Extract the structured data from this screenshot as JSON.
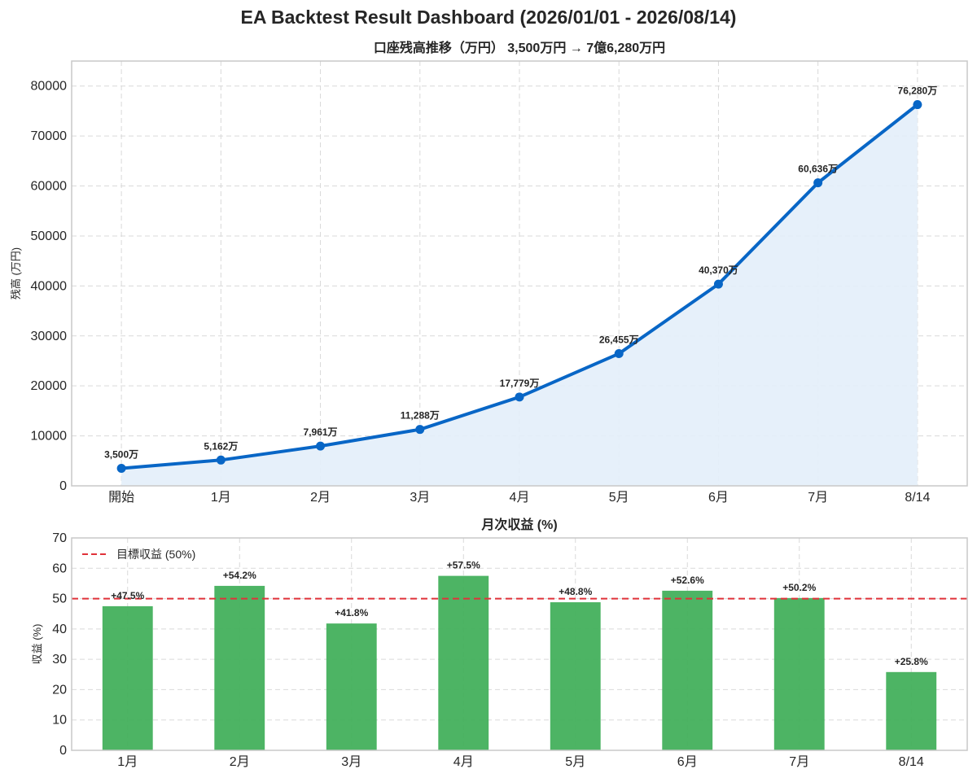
{
  "page": {
    "title": "EA Backtest Result Dashboard (2026/01/01 - 2026/08/14)"
  },
  "colors": {
    "line": "#0866c6",
    "area_fill": "#e3eef9",
    "bar": "#43b05c",
    "target_line": "#e0323a",
    "grid": "#d9d9d9",
    "frame": "#c8c8c8"
  },
  "chart_data": [
    {
      "type": "line",
      "title": "口座残高推移（万円） 3,500万円 → 7億6,280万円",
      "xlabel": "",
      "ylabel": "残高 (万円)",
      "categories": [
        "開始",
        "1月",
        "2月",
        "3月",
        "4月",
        "5月",
        "6月",
        "7月",
        "8/14"
      ],
      "values": [
        3500,
        5162,
        7961,
        11288,
        17779,
        26455,
        40370,
        60636,
        76280
      ],
      "data_labels": [
        "3,500万",
        "5,162万",
        "7,961万",
        "11,288万",
        "17,779万",
        "26,455万",
        "40,370万",
        "60,636万",
        "76,280万"
      ],
      "ylim": [
        0,
        85000
      ],
      "yticks": [
        0,
        10000,
        20000,
        30000,
        40000,
        50000,
        60000,
        70000,
        80000
      ],
      "area_fill": true,
      "grid": true
    },
    {
      "type": "bar",
      "title": "月次収益 (%)",
      "xlabel": "",
      "ylabel": "収益 (%)",
      "categories": [
        "1月",
        "2月",
        "3月",
        "4月",
        "5月",
        "6月",
        "7月",
        "8/14"
      ],
      "values": [
        47.5,
        54.2,
        41.8,
        57.5,
        48.8,
        52.6,
        50.2,
        25.8
      ],
      "data_labels": [
        "+47.5%",
        "+54.2%",
        "+41.8%",
        "+57.5%",
        "+48.8%",
        "+52.6%",
        "+50.2%",
        "+25.8%"
      ],
      "ylim": [
        0,
        70
      ],
      "yticks": [
        0,
        10,
        20,
        30,
        40,
        50,
        60,
        70
      ],
      "reference_line": {
        "value": 50,
        "label": "目標収益 (50%)"
      },
      "legend_position": "top-left",
      "grid": true
    }
  ]
}
